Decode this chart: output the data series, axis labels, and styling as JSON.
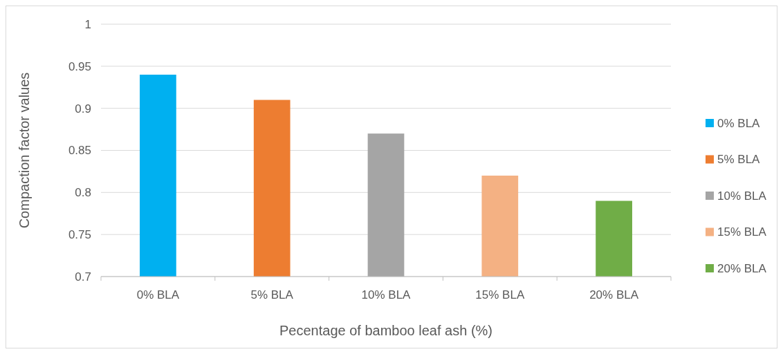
{
  "chart_data": {
    "type": "bar",
    "xlabel": "Pecentage of bamboo leaf ash (%)",
    "ylabel": "Compaction factor values",
    "categories": [
      "0% BLA",
      "5% BLA",
      "10% BLA",
      "15% BLA",
      "20% BLA"
    ],
    "series": [
      {
        "name": "0% BLA",
        "color": "#00b0f0",
        "values": [
          0.94,
          null,
          null,
          null,
          null
        ]
      },
      {
        "name": "5% BLA",
        "color": "#ed7d31",
        "values": [
          null,
          0.91,
          null,
          null,
          null
        ]
      },
      {
        "name": "10% BLA",
        "color": "#a5a5a5",
        "values": [
          null,
          null,
          0.87,
          null,
          null
        ]
      },
      {
        "name": "15% BLA",
        "color": "#f4b183",
        "values": [
          null,
          null,
          null,
          0.82,
          null
        ]
      },
      {
        "name": "20% BLA",
        "color": "#70ad47",
        "values": [
          null,
          null,
          null,
          null,
          0.79
        ]
      }
    ],
    "ylim": [
      0.7,
      1
    ],
    "yticks": [
      0.7,
      0.75,
      0.8,
      0.85,
      0.9,
      0.95,
      1
    ],
    "grid": "y",
    "legend": "right"
  }
}
